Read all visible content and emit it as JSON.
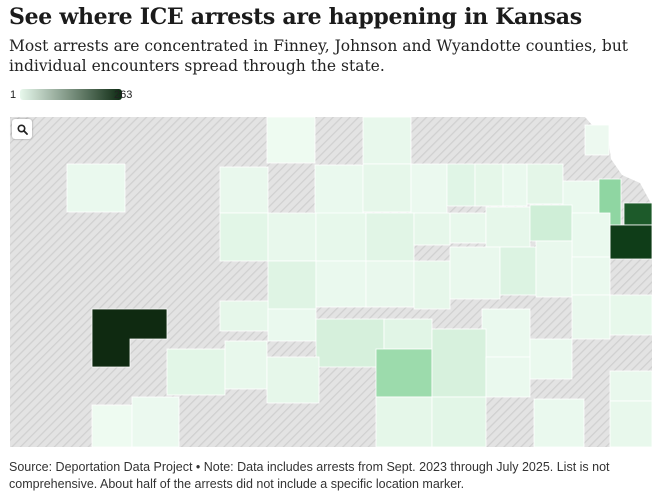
{
  "title": "See where ICE arrests are happening in Kansas",
  "subtitle": "Most arrests are concentrated in Finney, Johnson and Wyandotte counties, but individual encounters spread through the state.",
  "legend": {
    "min": "1",
    "max": "263",
    "color_low": "#e7f8ec",
    "color_high": "#0d2a12"
  },
  "colors": {
    "no_data_base": "#e3e3e3",
    "no_data_hatch": "#d0d0d0",
    "county_border": "#ffffff"
  },
  "map": {
    "search_icon": "search-icon"
  },
  "source": "Source: Deportation Data Project • Note: Data includes arrests from Sept. 2023 through July 2025. List is not comprehensive. About half of the arrests did not include a specific location marker."
}
